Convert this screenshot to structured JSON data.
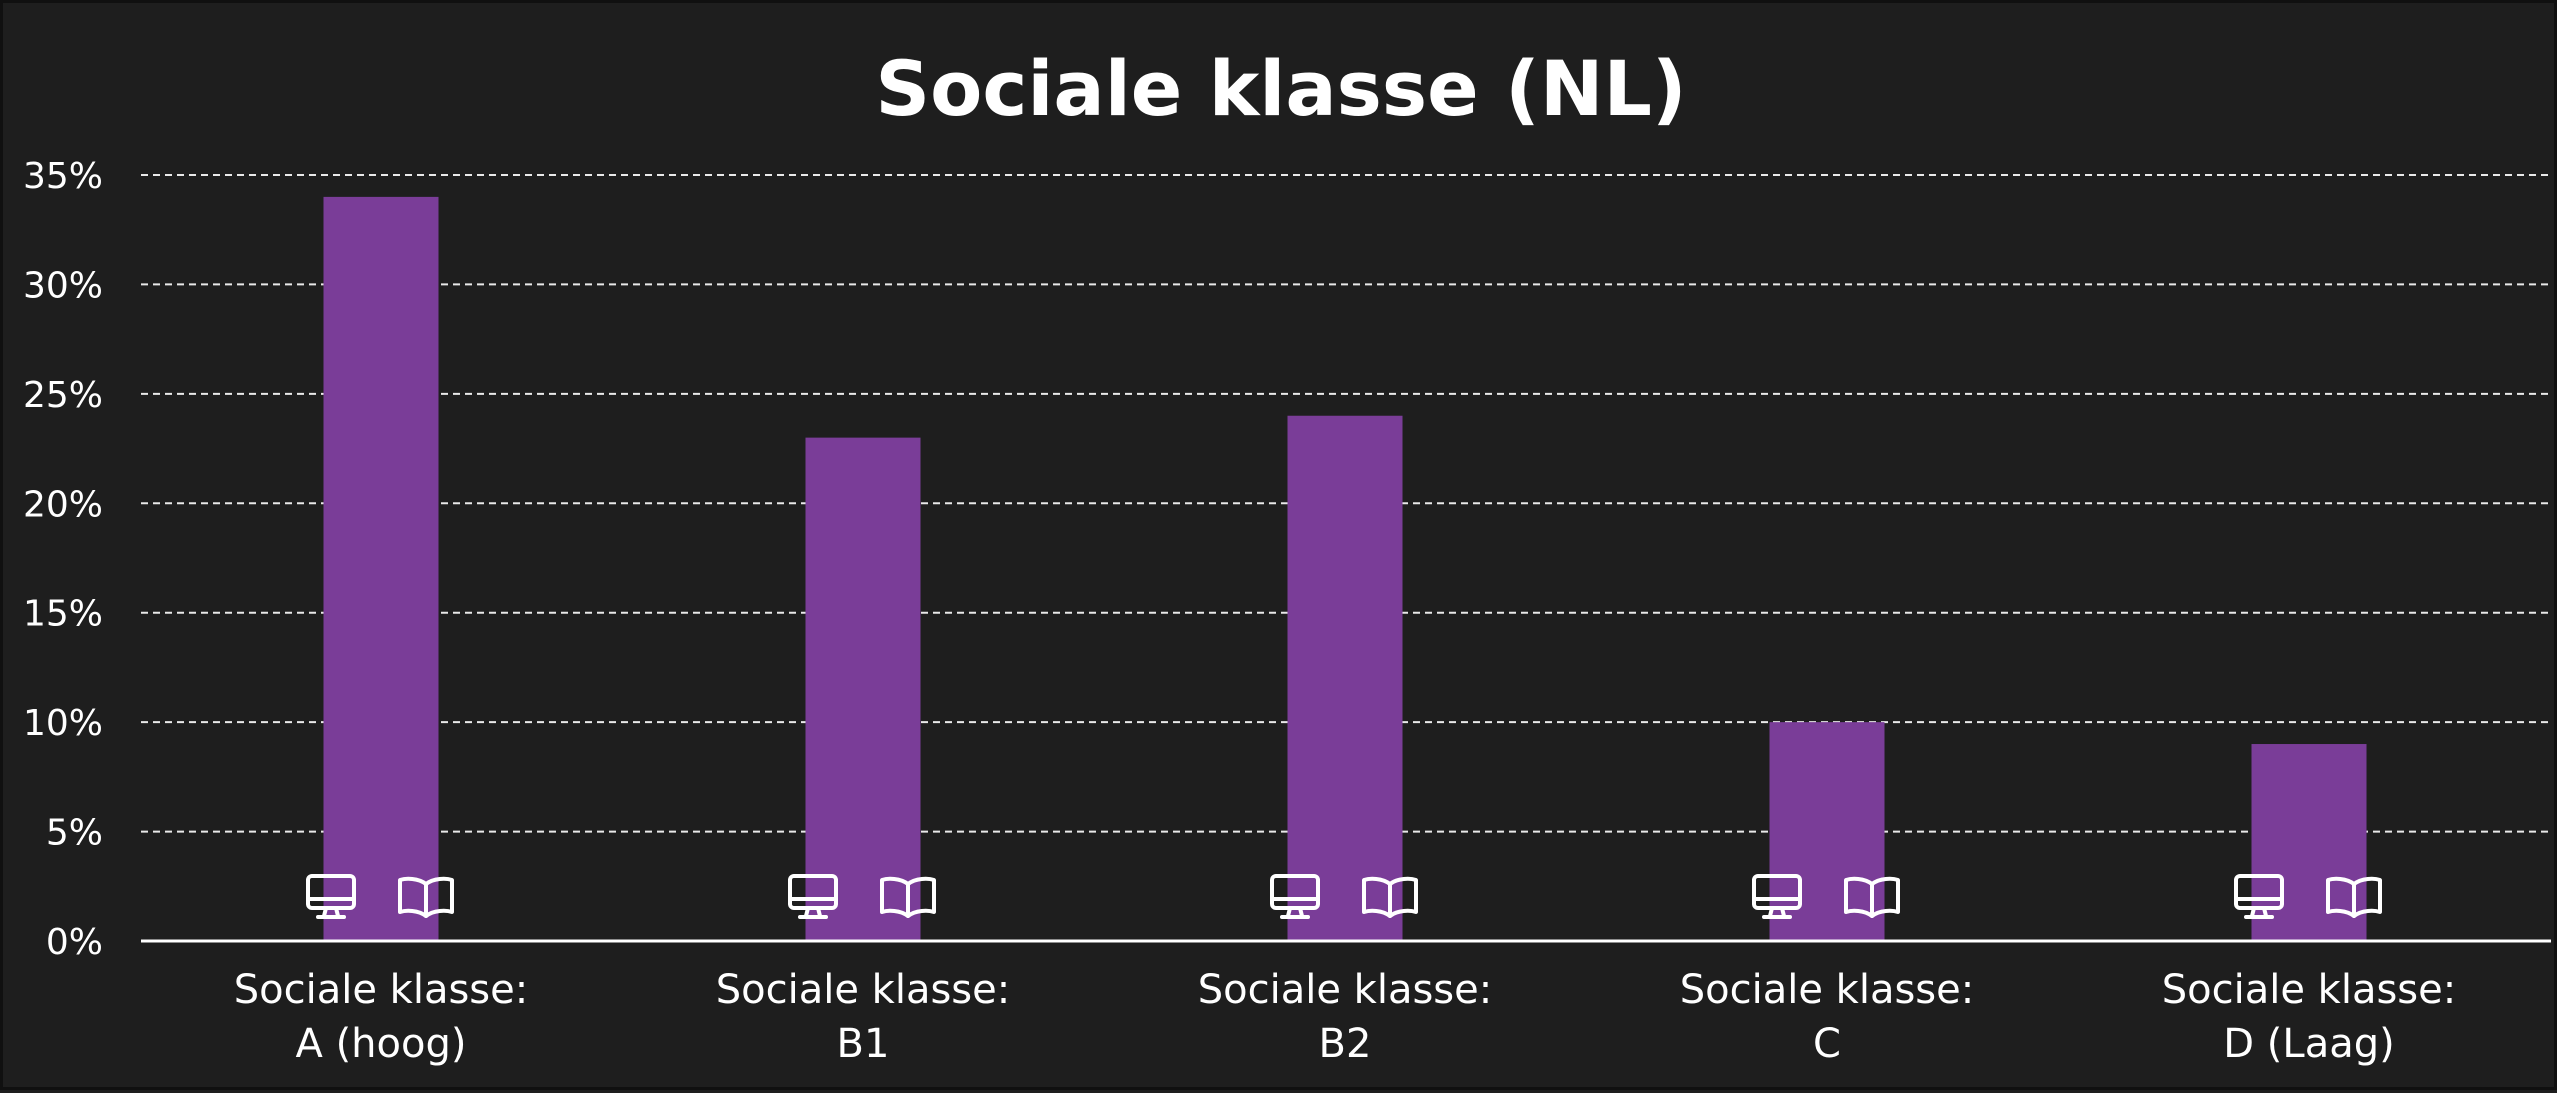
{
  "chart_data": {
    "type": "bar",
    "title": "Sociale klasse (NL)",
    "xlabel": "",
    "ylabel": "",
    "categories": [
      [
        "Sociale klasse:",
        "A (hoog)"
      ],
      [
        "Sociale klasse:",
        "B1"
      ],
      [
        "Sociale klasse:",
        "B2"
      ],
      [
        "Sociale klasse:",
        "C"
      ],
      [
        "Sociale klasse:",
        "D (Laag)"
      ]
    ],
    "values": [
      34,
      23,
      24,
      10,
      9
    ],
    "value_unit": "%",
    "ylim": [
      0,
      35
    ],
    "y_ticks": [
      0,
      5,
      10,
      15,
      20,
      25,
      30,
      35
    ],
    "y_tick_labels": [
      "0%",
      "5%",
      "10%",
      "15%",
      "20%",
      "25%",
      "30%",
      "35%"
    ],
    "grid": true,
    "legend": "none",
    "bar_color": "#7a3d98",
    "background_color": "#1e1e1e",
    "icons_per_category": [
      "monitor-icon",
      "book-icon"
    ]
  }
}
